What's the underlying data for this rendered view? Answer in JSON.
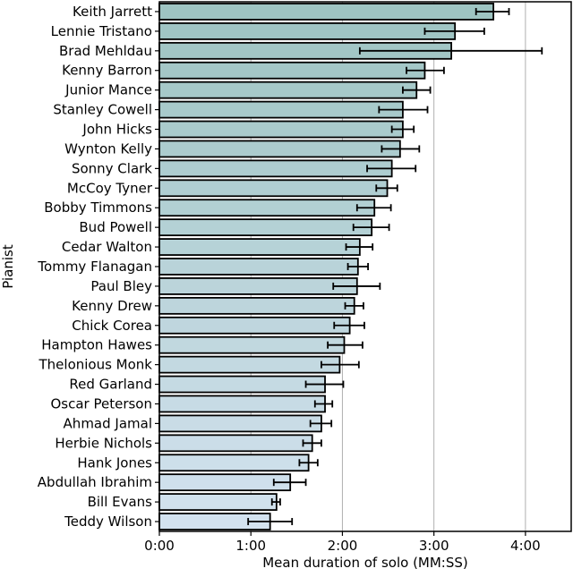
{
  "chart_data": {
    "type": "bar",
    "orientation": "horizontal",
    "title": "",
    "xlabel": "Mean duration of solo (MM:SS)",
    "ylabel": "Pianist",
    "xlim": [
      0,
      4.5
    ],
    "x_unit": "minutes",
    "xticks": [
      0,
      1,
      2,
      3,
      4
    ],
    "xtick_labels": [
      "0:00",
      "1:00",
      "2:00",
      "3:00",
      "4:00"
    ],
    "grid": "vertical",
    "colors": {
      "top": "#9ec4c2",
      "bottom": "#d3e2ef",
      "edge": "#000000",
      "grid": "#b0b0b0"
    },
    "categories": [
      "Keith Jarrett",
      "Lennie Tristano",
      "Brad Mehldau",
      "Kenny Barron",
      "Junior Mance",
      "Stanley Cowell",
      "John Hicks",
      "Wynton Kelly",
      "Sonny Clark",
      "McCoy Tyner",
      "Bobby Timmons",
      "Bud Powell",
      "Cedar Walton",
      "Tommy Flanagan",
      "Paul Bley",
      "Kenny Drew",
      "Chick Corea",
      "Hampton Hawes",
      "Thelonious Monk",
      "Red Garland",
      "Oscar Peterson",
      "Ahmad Jamal",
      "Herbie Nichols",
      "Hank Jones",
      "Abdullah Ibrahim",
      "Bill Evans",
      "Teddy Wilson"
    ],
    "values": [
      3.65,
      3.23,
      3.19,
      2.9,
      2.81,
      2.66,
      2.66,
      2.63,
      2.54,
      2.49,
      2.35,
      2.32,
      2.19,
      2.17,
      2.16,
      2.13,
      2.08,
      2.02,
      1.97,
      1.81,
      1.81,
      1.77,
      1.67,
      1.63,
      1.43,
      1.28,
      1.21
    ],
    "error_low": [
      3.46,
      2.9,
      2.19,
      2.7,
      2.66,
      2.4,
      2.54,
      2.43,
      2.27,
      2.37,
      2.16,
      2.12,
      2.04,
      2.06,
      1.9,
      2.03,
      1.91,
      1.84,
      1.77,
      1.6,
      1.7,
      1.65,
      1.57,
      1.53,
      1.25,
      1.23,
      0.97
    ],
    "error_high": [
      3.82,
      3.55,
      4.18,
      3.11,
      2.96,
      2.93,
      2.78,
      2.84,
      2.8,
      2.6,
      2.53,
      2.51,
      2.33,
      2.28,
      2.41,
      2.23,
      2.24,
      2.22,
      2.18,
      2.01,
      1.89,
      1.88,
      1.77,
      1.73,
      1.6,
      1.32,
      1.45
    ]
  }
}
